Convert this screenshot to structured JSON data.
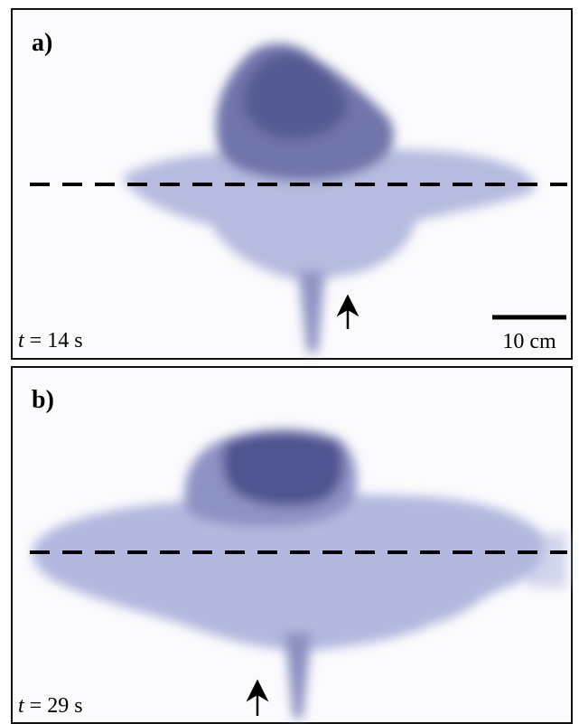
{
  "panels": [
    {
      "label": "a)",
      "time_variable": "t",
      "time_text": "= 14 s",
      "scale_bar_label": "10 cm"
    },
    {
      "label": "b)",
      "time_variable": "t",
      "time_text": "= 29 s"
    }
  ]
}
